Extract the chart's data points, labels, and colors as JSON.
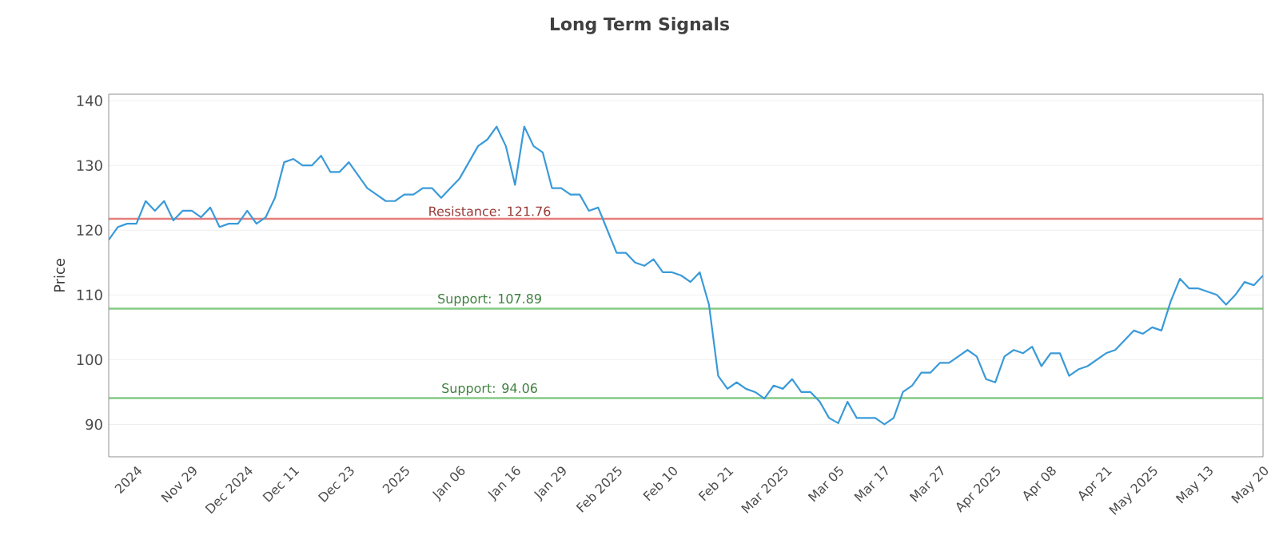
{
  "chart_data": {
    "type": "line",
    "title": "Long Term Signals",
    "ylabel": "Price",
    "categories": [
      null,
      null,
      null,
      "2024",
      null,
      null,
      null,
      null,
      null,
      "Nov 29",
      null,
      null,
      null,
      null,
      null,
      "Dec 2024",
      null,
      null,
      null,
      null,
      "Dec 11",
      null,
      null,
      null,
      null,
      null,
      "Dec 23",
      null,
      null,
      null,
      null,
      null,
      "2025",
      null,
      null,
      null,
      null,
      null,
      "Jan 06",
      null,
      null,
      null,
      null,
      null,
      "Jan 16",
      null,
      null,
      null,
      null,
      "Jan 29",
      null,
      null,
      null,
      null,
      null,
      "Feb 2025",
      null,
      null,
      null,
      null,
      null,
      "Feb 10",
      null,
      null,
      null,
      null,
      null,
      "Feb 21",
      null,
      null,
      null,
      null,
      null,
      "Mar 2025",
      null,
      null,
      null,
      null,
      null,
      "Mar 05",
      null,
      null,
      null,
      null,
      "Mar 17",
      null,
      null,
      null,
      null,
      null,
      "Mar 27",
      null,
      null,
      null,
      null,
      null,
      "Apr 2025",
      null,
      null,
      null,
      null,
      null,
      "Apr 08",
      null,
      null,
      null,
      null,
      null,
      "Apr 21",
      null,
      null,
      null,
      null,
      "May 2025",
      null,
      null,
      null,
      null,
      null,
      "May 13",
      null,
      null,
      null,
      null,
      null,
      "May 20"
    ],
    "series": [
      {
        "color": "#3a9ad9",
        "values": [
          118.5,
          120.5,
          121,
          121,
          124.5,
          123,
          124.5,
          121.5,
          123,
          123,
          122,
          123.5,
          120.5,
          121,
          121,
          123,
          121,
          122,
          125,
          130.5,
          131,
          130,
          130,
          131.5,
          129,
          129,
          130.5,
          128.5,
          126.5,
          125.5,
          124.5,
          124.5,
          125.5,
          125.5,
          126.5,
          126.5,
          125,
          126.5,
          128,
          130.5,
          133,
          134,
          136,
          133,
          127,
          136,
          133,
          132,
          126.5,
          126.5,
          125.5,
          125.5,
          123,
          123.5,
          120,
          116.5,
          116.5,
          115,
          114.5,
          115.5,
          113.5,
          113.5,
          113,
          112,
          113.5,
          108.5,
          97.5,
          95.5,
          96.5,
          95.5,
          95,
          94,
          96,
          95.5,
          97,
          95,
          95,
          93.5,
          91,
          90.2,
          93.5,
          91,
          91,
          91,
          90,
          91,
          95,
          96,
          98,
          98,
          99.5,
          99.5,
          100.5,
          101.5,
          100.5,
          97,
          96.5,
          100.5,
          101.5,
          101,
          102,
          99,
          101,
          101,
          97.5,
          98.5,
          99,
          100,
          101,
          101.5,
          103,
          104.5,
          104,
          105,
          104.5,
          109,
          112.5,
          111,
          111,
          110.5,
          110,
          108.5,
          110,
          112,
          111.5,
          113
        ]
      }
    ],
    "ylim": [
      85,
      141
    ],
    "yticks": [
      90,
      100,
      110,
      120,
      130,
      140
    ],
    "grid": "y",
    "marker": "none",
    "line_style": "solid",
    "ref_lines": [
      {
        "axis": "y",
        "value": 121.76,
        "label": "Resistance: 121.76",
        "color": "#d9534f"
      },
      {
        "axis": "y",
        "value": 107.89,
        "label": "Support: 107.89",
        "color": "#5cb85c"
      },
      {
        "axis": "y",
        "value": 94.06,
        "label": "Support: 94.06",
        "color": "#5cb85c"
      }
    ]
  }
}
